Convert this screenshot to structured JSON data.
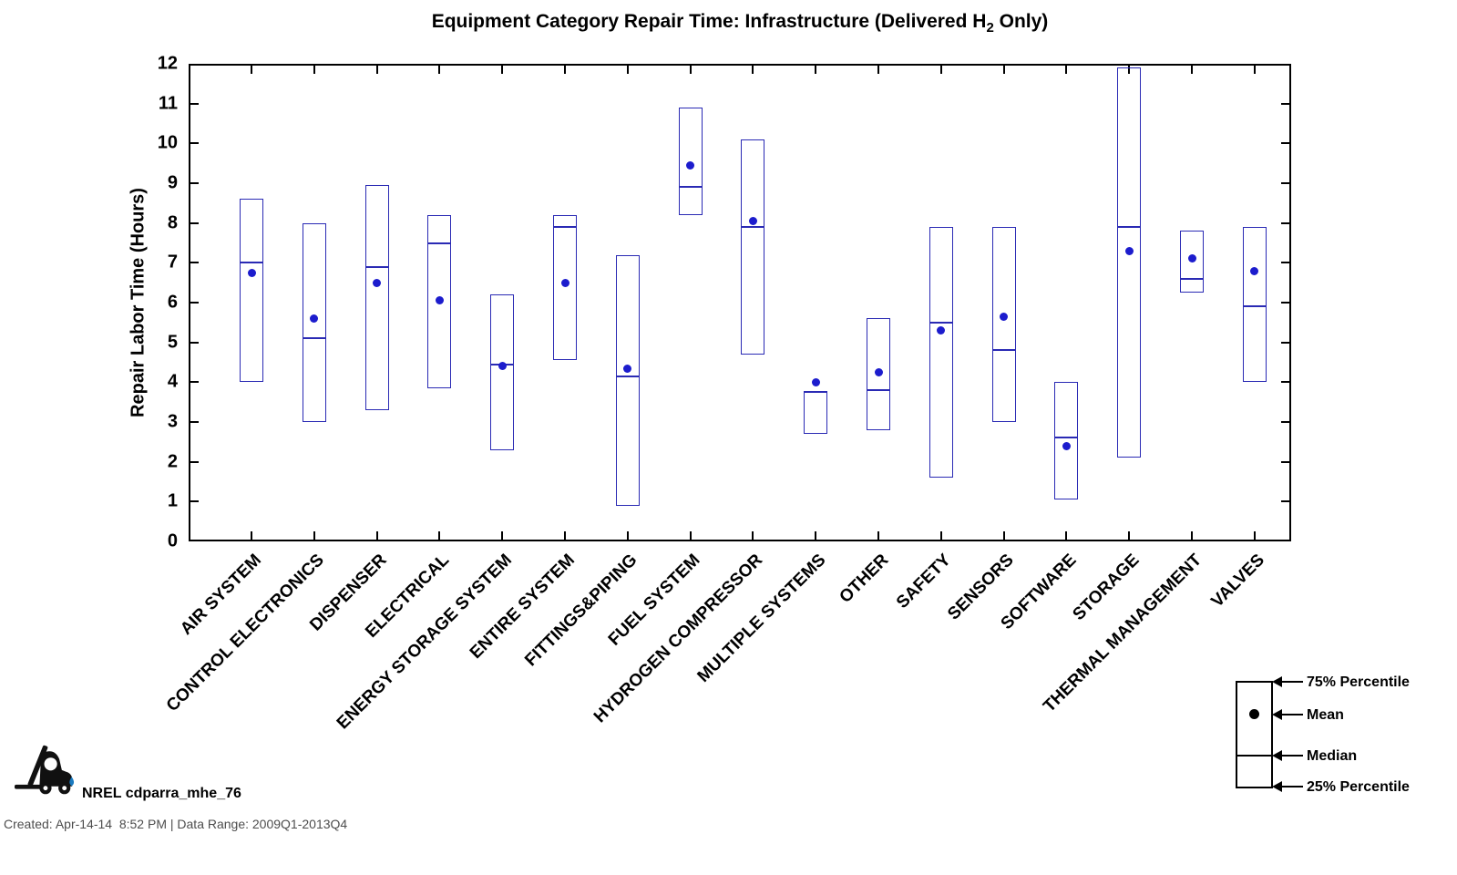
{
  "title": {
    "prefix": "Equipment Category Repair Time: Infrastructure (Delivered H",
    "subscript": "2",
    "suffix": " Only)"
  },
  "y_axis": {
    "label": "Repair Labor Time (Hours)",
    "min": 0,
    "max": 12,
    "tick_step": 1,
    "ticks": [
      0,
      1,
      2,
      3,
      4,
      5,
      6,
      7,
      8,
      9,
      10,
      11,
      12
    ]
  },
  "legend": {
    "items": [
      {
        "label": "75% Percentile"
      },
      {
        "label": "Mean"
      },
      {
        "label": "Median"
      },
      {
        "label": "25% Percentile"
      }
    ]
  },
  "footer": {
    "brand": "NREL cdparra_mhe_76",
    "created": "Created: Apr-14-14  8:52 PM | Data Range: 2009Q1-2013Q4"
  },
  "colors": {
    "box_stroke": "#2a2ab4",
    "mean_dot": "#1c1ccd",
    "axis": "#000000",
    "created_text": "#4d4d4d",
    "droplet": "#1a7abf"
  },
  "chart_data": {
    "type": "box",
    "title": "Equipment Category Repair Time: Infrastructure (Delivered H2 Only)",
    "xlabel": "",
    "ylabel": "Repair Labor Time (Hours)",
    "ylim": [
      0,
      12
    ],
    "grid": false,
    "legend_position": "bottom-right",
    "statistics_shown": [
      "75% Percentile",
      "Mean",
      "Median",
      "25% Percentile"
    ],
    "categories": [
      "AIR SYSTEM",
      "CONTROL ELECTRONICS",
      "DISPENSER",
      "ELECTRICAL",
      "ENERGY STORAGE SYSTEM",
      "ENTIRE SYSTEM",
      "FITTINGS&PIPING",
      "FUEL SYSTEM",
      "HYDROGEN COMPRESSOR",
      "MULTIPLE SYSTEMS",
      "OTHER",
      "SAFETY",
      "SENSORS",
      "SOFTWARE",
      "STORAGE",
      "THERMAL MANAGEMENT",
      "VALVES"
    ],
    "boxes": [
      {
        "category": "AIR SYSTEM",
        "p75": 8.6,
        "median": 7.0,
        "mean": 6.75,
        "p25": 4.0
      },
      {
        "category": "CONTROL ELECTRONICS",
        "p75": 8.0,
        "median": 5.1,
        "mean": 5.6,
        "p25": 3.0
      },
      {
        "category": "DISPENSER",
        "p75": 8.95,
        "median": 6.9,
        "mean": 6.5,
        "p25": 3.3
      },
      {
        "category": "ELECTRICAL",
        "p75": 8.2,
        "median": 7.5,
        "mean": 6.05,
        "p25": 3.85
      },
      {
        "category": "ENERGY STORAGE SYSTEM",
        "p75": 6.2,
        "median": 4.45,
        "mean": 4.4,
        "p25": 2.3
      },
      {
        "category": "ENTIRE SYSTEM",
        "p75": 8.2,
        "median": 7.9,
        "mean": 6.5,
        "p25": 4.55
      },
      {
        "category": "FITTINGS&PIPING",
        "p75": 7.2,
        "median": 4.15,
        "mean": 4.35,
        "p25": 0.9
      },
      {
        "category": "FUEL SYSTEM",
        "p75": 10.9,
        "median": 8.9,
        "mean": 9.45,
        "p25": 8.2
      },
      {
        "category": "HYDROGEN COMPRESSOR",
        "p75": 10.1,
        "median": 7.9,
        "mean": 8.05,
        "p25": 4.7
      },
      {
        "category": "MULTIPLE SYSTEMS",
        "p75": 3.75,
        "median": 3.75,
        "mean": 4.0,
        "p25": 2.7
      },
      {
        "category": "OTHER",
        "p75": 5.6,
        "median": 3.8,
        "mean": 4.25,
        "p25": 2.8
      },
      {
        "category": "SAFETY",
        "p75": 7.9,
        "median": 5.5,
        "mean": 5.3,
        "p25": 1.6
      },
      {
        "category": "SENSORS",
        "p75": 7.9,
        "median": 4.8,
        "mean": 5.65,
        "p25": 3.0
      },
      {
        "category": "SOFTWARE",
        "p75": 4.0,
        "median": 2.6,
        "mean": 2.4,
        "p25": 1.05
      },
      {
        "category": "STORAGE",
        "p75": 11.9,
        "median": 7.9,
        "mean": 7.3,
        "p25": 2.1
      },
      {
        "category": "THERMAL MANAGEMENT",
        "p75": 7.8,
        "median": 6.6,
        "mean": 7.1,
        "p25": 6.25
      },
      {
        "category": "VALVES",
        "p75": 7.9,
        "median": 5.9,
        "mean": 6.8,
        "p25": 4.0
      }
    ]
  }
}
